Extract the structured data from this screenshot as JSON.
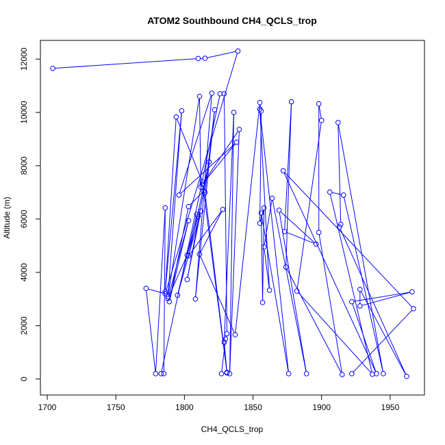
{
  "chart_data": {
    "type": "line",
    "title": "ATOM2 Southbound CH4_QCLS_trop",
    "xlabel": "CH4_QCLS_trop",
    "ylabel": "Altitude (m)",
    "xlim": [
      1695,
      1975
    ],
    "ylim": [
      -600,
      12700
    ],
    "xticks": [
      1700,
      1750,
      1800,
      1850,
      1900,
      1950
    ],
    "yticks": [
      0,
      2000,
      4000,
      6000,
      8000,
      10000,
      12000
    ],
    "grid": false,
    "markers": "open-circle",
    "color": "#0000ff",
    "series": [
      {
        "points": [
          [
            1704,
            11650
          ],
          [
            1810,
            12020
          ],
          [
            1815,
            12030
          ],
          [
            1839,
            12300
          ],
          [
            1786,
            3200
          ],
          [
            1772,
            3400
          ],
          [
            1779,
            200
          ],
          [
            1786,
            6420
          ],
          [
            1785,
            200
          ],
          [
            1783,
            200
          ],
          [
            1813,
            7400
          ],
          [
            1794,
            9830
          ],
          [
            1786,
            3280
          ],
          [
            1798,
            10060
          ],
          [
            1788,
            3100
          ],
          [
            1811,
            10600
          ],
          [
            1812,
            7200
          ],
          [
            1826,
            10700
          ],
          [
            1829,
            10700
          ],
          [
            1831,
            1700
          ],
          [
            1830,
            1500
          ],
          [
            1827,
            200
          ],
          [
            1831,
            230
          ],
          [
            1829,
            1380
          ],
          [
            1836,
            10000
          ],
          [
            1833,
            200
          ],
          [
            1840,
            9360
          ],
          [
            1813,
            7300
          ],
          [
            1838,
            8880
          ],
          [
            1796,
            6900
          ],
          [
            1820,
            10720
          ],
          [
            1808,
            3000
          ],
          [
            1822,
            10100
          ],
          [
            1815,
            7000
          ],
          [
            1831,
            250
          ],
          [
            1814,
            7050
          ],
          [
            1803,
            6470
          ],
          [
            1789,
            2900
          ],
          [
            1803,
            5940
          ],
          [
            1788,
            3020
          ],
          [
            1802,
            4650
          ],
          [
            1810,
            6100
          ],
          [
            1809,
            6170
          ],
          [
            1795,
            3140
          ],
          [
            1812,
            6300
          ],
          [
            1802,
            3730
          ],
          [
            1818,
            8140
          ],
          [
            1803,
            4620
          ],
          [
            1828,
            6360
          ],
          [
            1811,
            4680
          ],
          [
            1837,
            1660
          ],
          [
            1855,
            10370
          ],
          [
            1856,
            10050
          ],
          [
            1855,
            5840
          ],
          [
            1858,
            6420
          ],
          [
            1857,
            2870
          ],
          [
            1856,
            6230
          ],
          [
            1876,
            200
          ],
          [
            1855,
            10120
          ],
          [
            1862,
            3330
          ],
          [
            1858,
            4950
          ],
          [
            1864,
            6780
          ],
          [
            1889,
            200
          ],
          [
            1869,
            6330
          ],
          [
            1896,
            5060
          ],
          [
            1873,
            5530
          ],
          [
            1878,
            10400
          ],
          [
            1874,
            4200
          ],
          [
            1915,
            170
          ],
          [
            1898,
            5500
          ],
          [
            1898,
            10320
          ],
          [
            1900,
            9700
          ],
          [
            1882,
            3300
          ],
          [
            1937,
            180
          ],
          [
            1906,
            7010
          ],
          [
            1916,
            6900
          ],
          [
            1945,
            200
          ],
          [
            1912,
            9620
          ],
          [
            1914,
            5800
          ],
          [
            1913,
            5700
          ],
          [
            1962,
            100
          ],
          [
            1928,
            3360
          ],
          [
            1928,
            2740
          ],
          [
            1966,
            3270
          ],
          [
            1922,
            2900
          ],
          [
            1940,
            200
          ],
          [
            1872,
            7810
          ],
          [
            1967,
            2640
          ],
          [
            1922,
            200
          ]
        ]
      }
    ]
  }
}
